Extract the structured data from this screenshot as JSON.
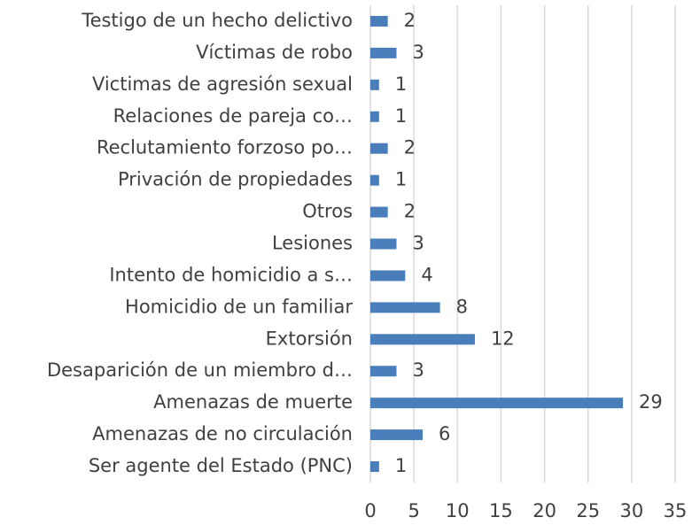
{
  "chart_data": {
    "type": "bar",
    "orientation": "horizontal",
    "categories": [
      "Testigo de un hecho delictivo",
      "Víctimas de robo",
      "Victimas de agresión sexual",
      "Relaciones de pareja co…",
      "Reclutamiento forzoso po…",
      "Privación de propiedades",
      "Otros",
      "Lesiones",
      "Intento de homicidio a s…",
      "Homicidio de un familiar",
      "Extorsión",
      "Desaparición de un miembro d…",
      "Amenazas de muerte",
      "Amenazas de no circulación",
      "Ser agente del Estado (PNC)"
    ],
    "values": [
      2,
      3,
      1,
      1,
      2,
      1,
      2,
      3,
      4,
      8,
      12,
      3,
      29,
      6,
      1
    ],
    "color": "#4a7ebb",
    "xlim": [
      0,
      35
    ],
    "xticks": [
      0,
      5,
      10,
      15,
      20,
      25,
      30,
      35
    ],
    "grid": true
  }
}
